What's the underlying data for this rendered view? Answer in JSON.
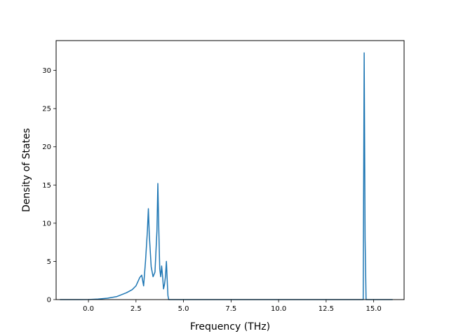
{
  "chart_data": {
    "type": "line",
    "xlabel": "Frequency (THz)",
    "ylabel": "Density of States",
    "xlim": [
      -1.7,
      16.6
    ],
    "ylim": [
      0,
      33.9
    ],
    "xticks": [
      0.0,
      2.5,
      5.0,
      7.5,
      10.0,
      12.5,
      15.0
    ],
    "xtick_labels": [
      "0.0",
      "2.5",
      "5.0",
      "7.5",
      "10.0",
      "12.5",
      "15.0"
    ],
    "yticks": [
      0,
      5,
      10,
      15,
      20,
      25,
      30
    ],
    "ytick_labels": [
      "0",
      "5",
      "10",
      "15",
      "20",
      "25",
      "30"
    ],
    "grid": false,
    "line_color": "#1f77b4",
    "series": [
      {
        "x": [
          -1.5,
          -0.5,
          0.0,
          0.5,
          1.0,
          1.5,
          2.0,
          2.3,
          2.5,
          2.7,
          2.8,
          2.9,
          3.0,
          3.1,
          3.15,
          3.2,
          3.3,
          3.4,
          3.5,
          3.6,
          3.65,
          3.7,
          3.75,
          3.8,
          3.85,
          3.9,
          3.95,
          4.0,
          4.05,
          4.1,
          4.15,
          4.18,
          4.22,
          5.0,
          10.0,
          14.3,
          14.45,
          14.5,
          14.55,
          14.6,
          14.7,
          16.0
        ],
        "y": [
          0,
          0,
          0.01,
          0.06,
          0.18,
          0.4,
          0.9,
          1.3,
          1.8,
          2.9,
          3.2,
          1.8,
          5.0,
          9.0,
          11.9,
          8.5,
          4.3,
          3.0,
          3.6,
          9.0,
          15.2,
          9.0,
          4.0,
          3.0,
          4.4,
          3.0,
          1.4,
          2.0,
          3.0,
          5.0,
          2.0,
          0.5,
          0,
          0,
          0,
          0,
          0,
          32.3,
          8.0,
          0,
          0,
          0
        ]
      }
    ]
  }
}
